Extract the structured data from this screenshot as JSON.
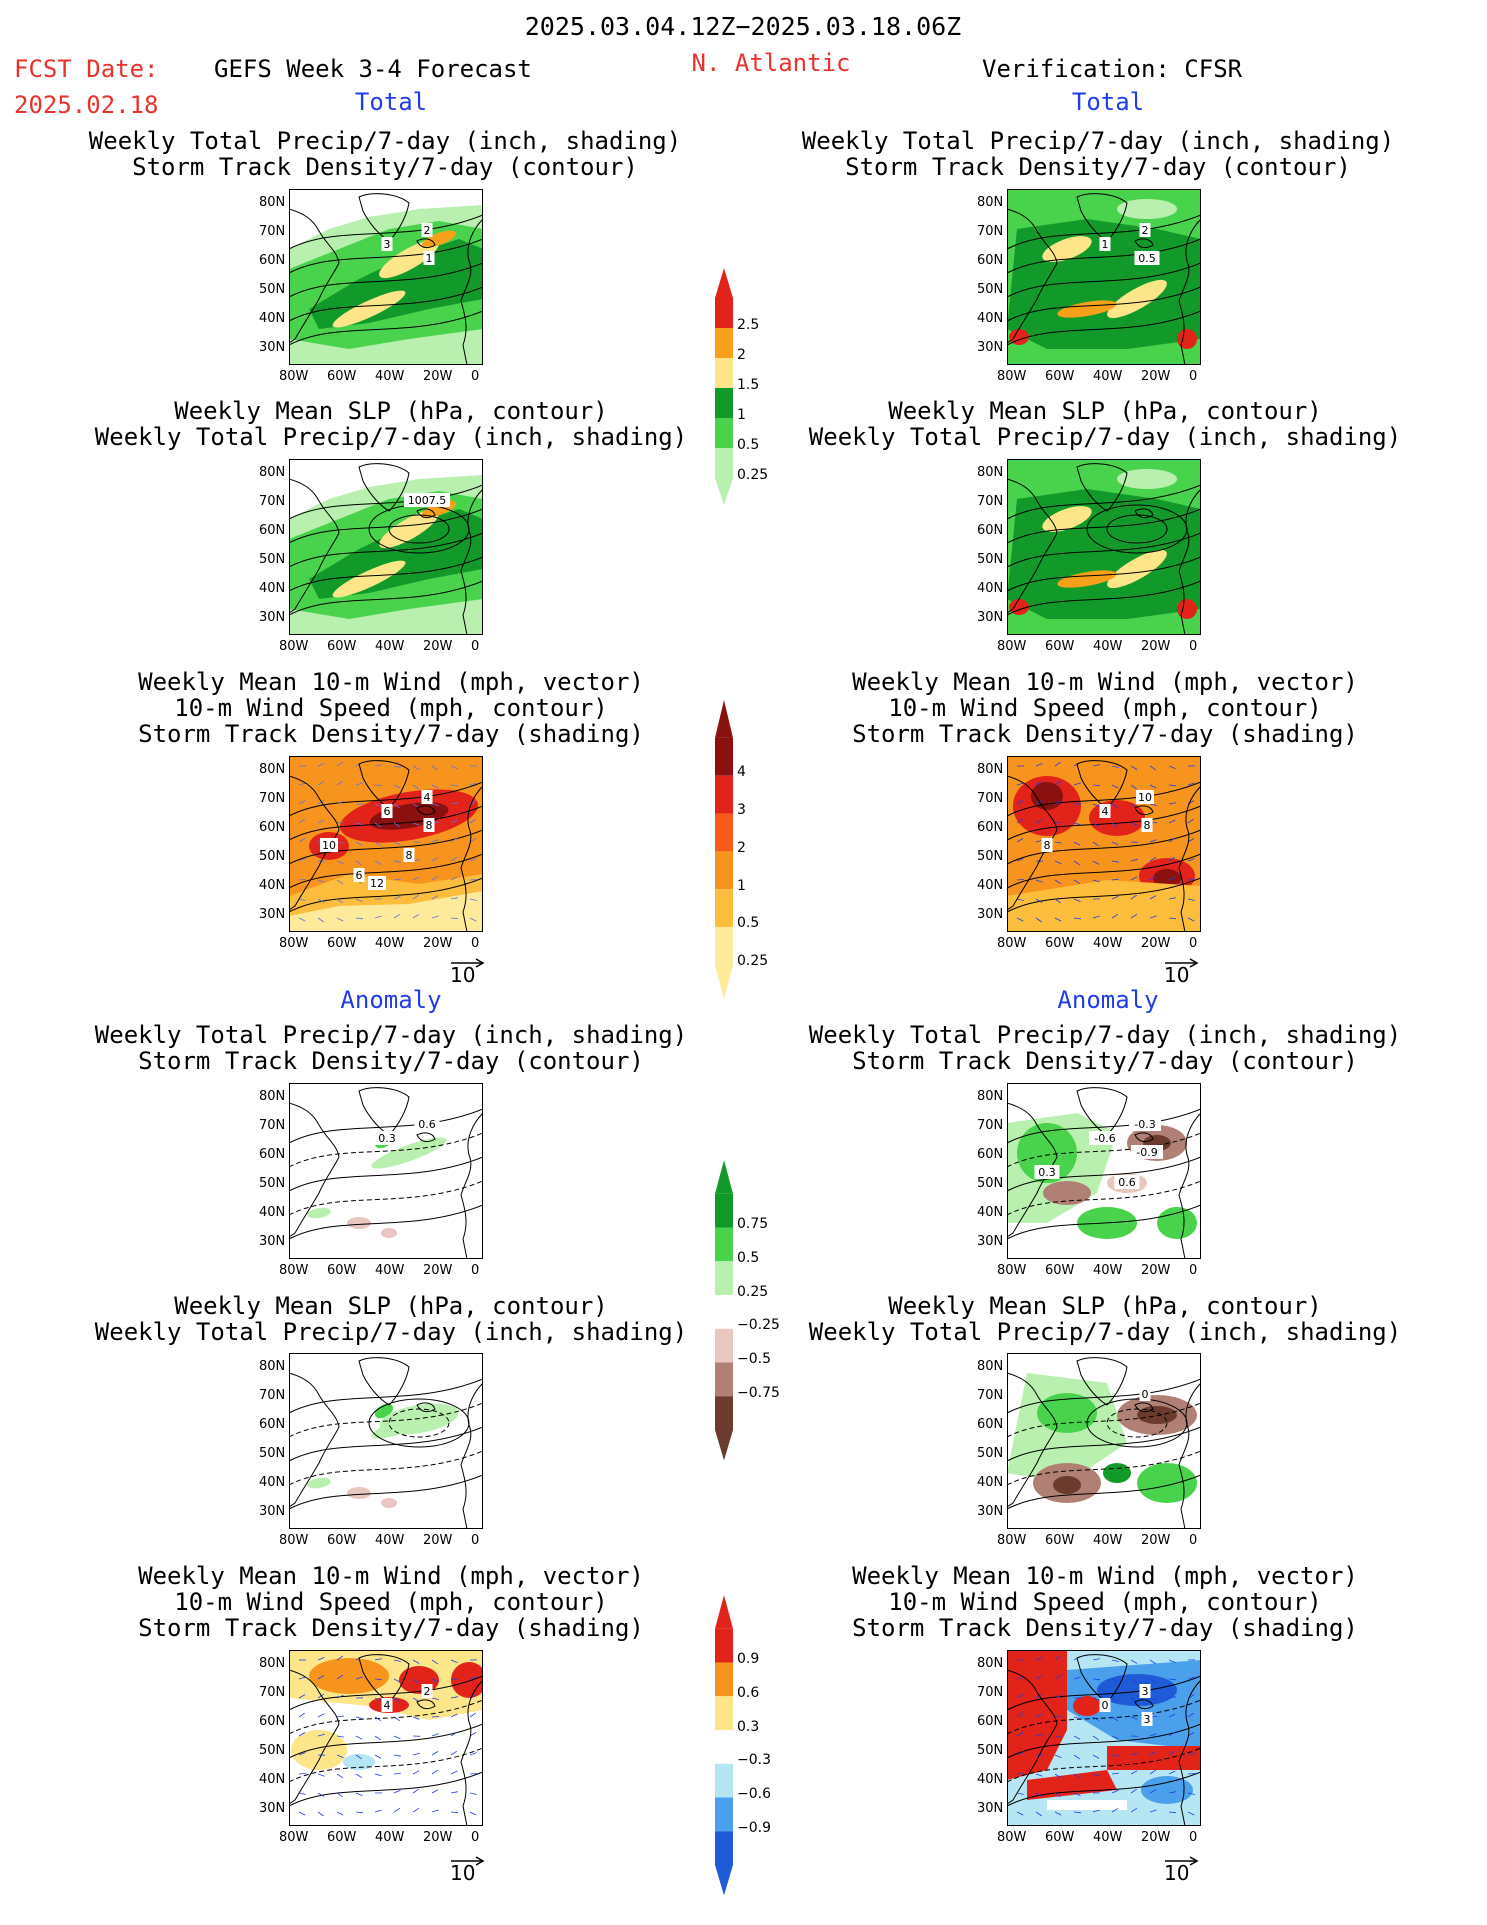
{
  "header": {
    "date_range": "2025.03.04.12Z−2025.03.18.06Z",
    "fcst_label": "FCST Date:",
    "fcst_date": "2025.02.18",
    "forecast_name": "GEFS Week 3-4 Forecast",
    "region": "N. Atlantic",
    "verification": "Verification: CFSR"
  },
  "sections": {
    "total_left": "Total",
    "total_right": "Total",
    "anomaly_left": "Anomaly",
    "anomaly_right": "Anomaly"
  },
  "titles": {
    "precip_storm": [
      "Weekly Total Precip/7-day (inch, shading)",
      "Storm Track Density/7-day (contour)"
    ],
    "slp_precip": [
      "Weekly Mean SLP (hPa, contour)",
      "Weekly Total Precip/7-day (inch, shading)"
    ],
    "wind_storm": [
      "Weekly Mean 10-m Wind (mph, vector)",
      "10-m Wind Speed (mph, contour)",
      "Storm Track Density/7-day (shading)"
    ]
  },
  "axes": {
    "lat_labels": [
      "80N",
      "70N",
      "60N",
      "50N",
      "40N",
      "30N"
    ],
    "lon_labels": [
      "80W",
      "60W",
      "40W",
      "20W",
      "0"
    ]
  },
  "vector_reference": "10",
  "colorbars": [
    {
      "labels": [
        "2.5",
        "2",
        "1.5",
        "1",
        "0.5",
        "0.25"
      ],
      "colors": [
        "#e2231a",
        "#f7a11a",
        "#fde68a",
        "#119a2a",
        "#49d34c",
        "#b9f0b0"
      ]
    },
    {
      "labels": [
        "4",
        "3",
        "2",
        "1",
        "0.5",
        "0.25"
      ],
      "colors": [
        "#8b1111",
        "#e2231a",
        "#f55a1a",
        "#f7941d",
        "#fbbd3b",
        "#fdea9a"
      ]
    },
    {
      "labels": [
        "0.75",
        "0.5",
        "0.25",
        "−0.25",
        "−0.5",
        "−0.75"
      ],
      "colors": [
        "#119a2a",
        "#49d34c",
        "#b9f0b0",
        "#ffffff",
        "#e8c7c0",
        "#b08075",
        "#6b3b2e"
      ]
    },
    {
      "labels": [
        "0.9",
        "0.6",
        "0.3",
        "−0.3",
        "−0.6",
        "−0.9"
      ],
      "colors": [
        "#e2231a",
        "#f7941d",
        "#fde68a",
        "#ffffff",
        "#b6e6f4",
        "#4aa0ea",
        "#1f5bd6"
      ]
    }
  ],
  "contour_labels": {
    "p1": [
      "2",
      "3",
      "1"
    ],
    "p2": [
      "2",
      "1",
      "0.5"
    ],
    "p3": [
      "1007.5"
    ],
    "p5": [
      "4",
      "6",
      "8",
      "10",
      "8",
      "6",
      "12"
    ],
    "p6": [
      "10",
      "4",
      "8",
      "8"
    ],
    "p7": [
      "0.6",
      "0.3"
    ],
    "p8": [
      "-0.3",
      "-0.6",
      "-0.9",
      "0.3",
      "0.6"
    ],
    "p10": [
      "0"
    ],
    "p11": [
      "2",
      "4"
    ],
    "p12": [
      "3",
      "0",
      "3"
    ]
  },
  "colors": {
    "header_red": "#e8322c",
    "section_blue": "#1f3dea"
  }
}
